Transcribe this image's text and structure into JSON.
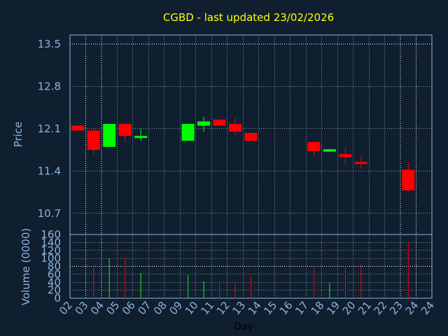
{
  "chart_data": {
    "type": "candlestick",
    "title": "CGBD - last updated 23/02/2026",
    "price_panel": {
      "ylabel": "Price",
      "ylim": [
        10.35,
        13.65
      ],
      "yticks": [
        "13.5",
        "12.8",
        "12.1",
        "11.4",
        "10.7"
      ],
      "ytick_values": [
        13.5,
        12.8,
        12.1,
        11.4,
        10.7
      ],
      "grid": true
    },
    "volume_panel": {
      "ylabel": "Volume (0000)",
      "ylim": [
        0,
        160
      ],
      "yticks": [
        "160",
        "140",
        "120",
        "100",
        "80",
        "60",
        "40",
        "20",
        "0"
      ],
      "ytick_values": [
        160,
        140,
        120,
        100,
        80,
        60,
        40,
        20,
        0
      ],
      "grid": true
    },
    "xlabel": "Day",
    "days": [
      "02",
      "03",
      "04",
      "05",
      "06",
      "07",
      "08",
      "09",
      "10",
      "11",
      "12",
      "13",
      "14",
      "15",
      "16",
      "17",
      "18",
      "19",
      "20",
      "21",
      "22",
      "23",
      "24"
    ],
    "candles": [
      {
        "day": "02",
        "open": 12.15,
        "close": 12.07,
        "high": 12.15,
        "low": 12.07,
        "volume": 0
      },
      {
        "day": "03",
        "open": 12.07,
        "close": 11.75,
        "high": 12.1,
        "low": 11.68,
        "volume": 83
      },
      {
        "day": "04",
        "open": 11.8,
        "close": 12.18,
        "high": 12.18,
        "low": 11.8,
        "volume": 100
      },
      {
        "day": "05",
        "open": 12.18,
        "close": 11.98,
        "high": 12.18,
        "low": 11.88,
        "volume": 102
      },
      {
        "day": "06",
        "open": 11.96,
        "close": 11.98,
        "high": 12.1,
        "low": 11.9,
        "volume": 63
      },
      {
        "day": "09",
        "open": 11.9,
        "close": 12.18,
        "high": 12.18,
        "low": 11.9,
        "volume": 58
      },
      {
        "day": "10",
        "open": 12.15,
        "close": 12.22,
        "high": 12.3,
        "low": 12.05,
        "volume": 42
      },
      {
        "day": "11",
        "open": 12.25,
        "close": 12.15,
        "high": 12.25,
        "low": 12.15,
        "volume": 42
      },
      {
        "day": "12",
        "open": 12.18,
        "close": 12.05,
        "high": 12.28,
        "low": 12.0,
        "volume": 40
      },
      {
        "day": "13",
        "open": 12.03,
        "close": 11.9,
        "high": 12.03,
        "low": 11.88,
        "volume": 58
      },
      {
        "day": "17",
        "open": 11.88,
        "close": 11.73,
        "high": 11.88,
        "low": 11.65,
        "volume": 78
      },
      {
        "day": "18",
        "open": 11.72,
        "close": 11.76,
        "high": 11.76,
        "low": 11.72,
        "volume": 38
      },
      {
        "day": "19",
        "open": 11.68,
        "close": 11.63,
        "high": 11.8,
        "low": 11.52,
        "volume": 80
      },
      {
        "day": "20",
        "open": 11.55,
        "close": 11.52,
        "high": 11.65,
        "low": 11.44,
        "volume": 85
      },
      {
        "day": "23",
        "open": 11.42,
        "close": 11.08,
        "high": 11.55,
        "low": 11.05,
        "volume": 140
      }
    ],
    "colors": {
      "background": "#0f1f30",
      "up": "#00ff00",
      "down": "#ff0000",
      "grid": "#ffffff",
      "frame": "#8fb3d9",
      "title": "#ffff00",
      "axis_text": "#8fb3d9"
    }
  }
}
